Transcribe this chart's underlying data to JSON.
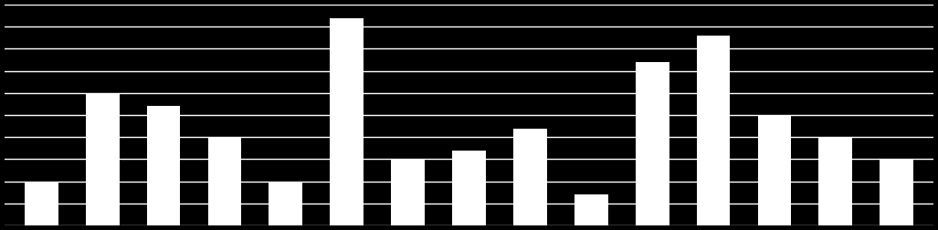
{
  "values": [
    10,
    30,
    27,
    20,
    10,
    47,
    15,
    17,
    22,
    7,
    37,
    43,
    25,
    20,
    15
  ],
  "bar_color": "#ffffff",
  "background_color": "#000000",
  "grid_color": "#ffffff",
  "ylim": [
    0,
    50
  ],
  "bar_width": 0.55,
  "figsize": [
    10.27,
    2.52
  ],
  "dpi": 100,
  "n_gridlines": 10,
  "grid_linewidth": 1.0
}
